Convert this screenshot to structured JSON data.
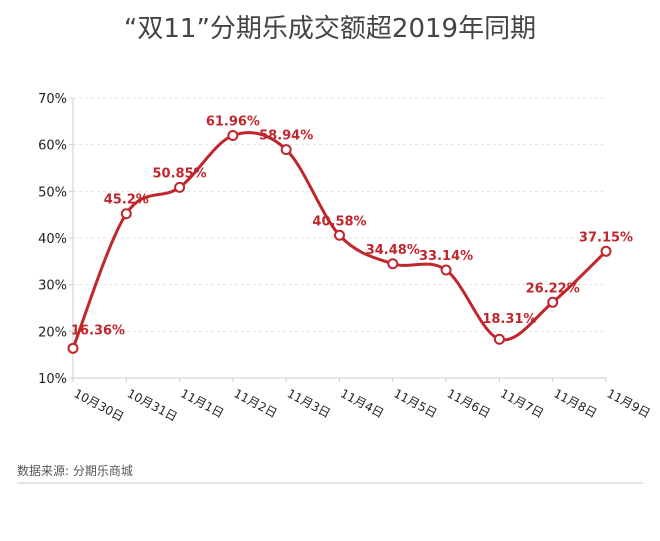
{
  "chart_data": {
    "type": "line",
    "title": "“双11”分期乐成交额超2019年同期",
    "categories": [
      "10月30日",
      "10月31日",
      "11月1日",
      "11月2日",
      "11月3日",
      "11月4日",
      "11月5日",
      "11月6日",
      "11月7日",
      "11月8日",
      "11月9日"
    ],
    "values": [
      16.36,
      45.2,
      50.85,
      61.96,
      58.94,
      40.58,
      34.48,
      33.14,
      18.31,
      26.22,
      37.15
    ],
    "labels": [
      "16.36%",
      "45.2%",
      "50.85%",
      "61.96%",
      "58.94%",
      "40.58%",
      "34.48%",
      "33.14%",
      "18.31%",
      "26.22%",
      "37.15%"
    ],
    "yticks": [
      "10%",
      "20%",
      "30%",
      "40%",
      "50%",
      "60%",
      "70%"
    ],
    "ylim": [
      10,
      70
    ],
    "grid": true,
    "line_color": "#c0272d"
  },
  "source": "数据来源: 分期乐商城"
}
